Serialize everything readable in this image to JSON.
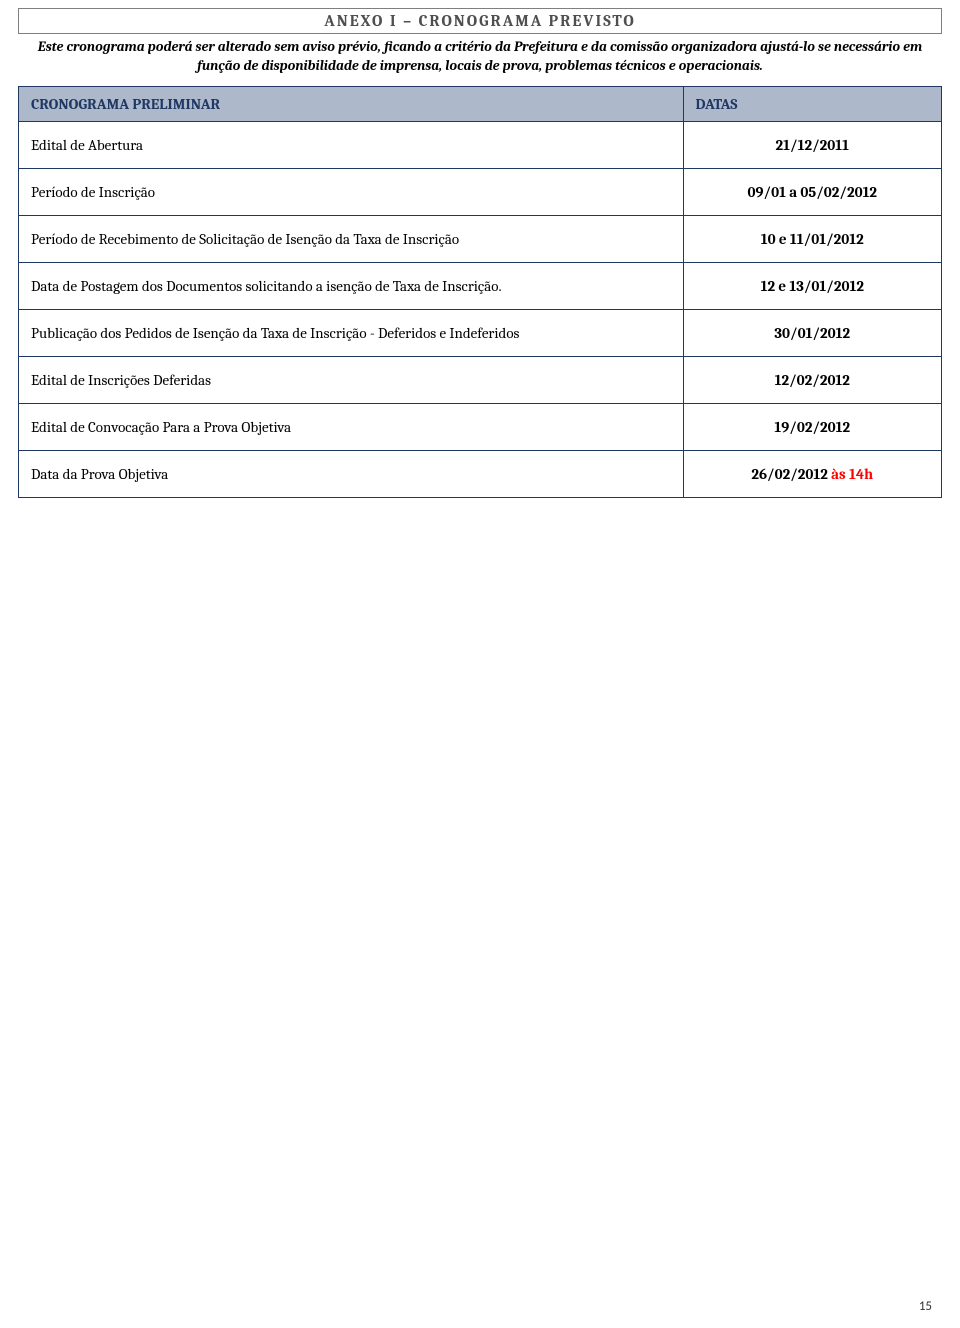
{
  "header": {
    "anexo_title": "ANEXO I – CRONOGRAMA PREVISTO",
    "disclaimer": "Este cronograma poderá ser alterado sem aviso prévio, ficando a critério da Prefeitura e da comissão organizadora ajustá-lo se necessário em função de disponibilidade de imprensa, locais de prova, problemas técnicos e operacionais."
  },
  "table": {
    "columns": {
      "label": "CRONOGRAMA PRELIMINAR",
      "dates": "DATAS"
    },
    "rows": [
      {
        "label": "Edital de Abertura",
        "date": "21/12/2011"
      },
      {
        "label": "Período de Inscrição",
        "date": "09/01 a 05/02/2012"
      },
      {
        "label": "Período de Recebimento de Solicitação de Isenção da Taxa de Inscrição",
        "date": "10 e 11/01/2012"
      },
      {
        "label": "Data de Postagem dos Documentos solicitando a isenção de Taxa de Inscrição.",
        "date": "12 e 13/01/2012"
      },
      {
        "label": "Publicação dos Pedidos de Isenção da Taxa de Inscrição - Deferidos e Indeferidos",
        "date": "30/01/2012"
      },
      {
        "label": "Edital de Inscrições Deferidas",
        "date": "12/02/2012"
      },
      {
        "label": "Edital de Convocação Para a Prova Objetiva",
        "date": "19/02/2012"
      },
      {
        "label": "Data da Prova Objetiva",
        "date": "26/02/2012",
        "date_suffix": " às 14h"
      }
    ]
  },
  "colors": {
    "header_bg": "#adb9ca",
    "border": "#1f3864",
    "title_text": "#4f4f4f",
    "accent_red": "#ff0000"
  },
  "page_number": "15"
}
